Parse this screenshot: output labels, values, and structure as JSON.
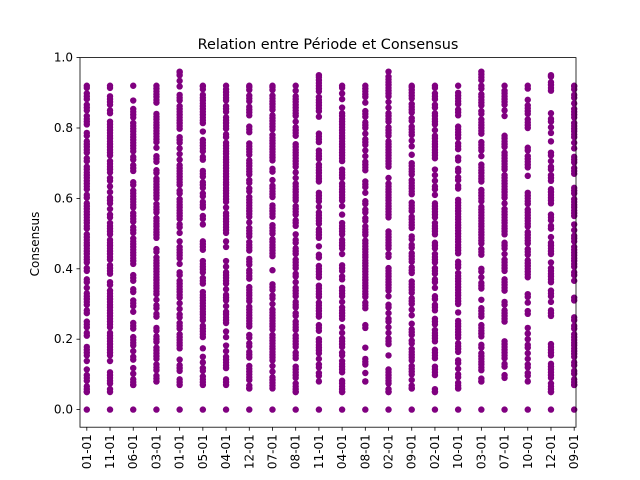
{
  "chart_data": {
    "type": "scatter",
    "title": "Relation entre Période et Consensus",
    "xlabel": "",
    "ylabel": "Consensus",
    "categories": [
      "01-01",
      "11-01",
      "06-01",
      "03-01",
      "01-01",
      "05-01",
      "04-01",
      "12-01",
      "07-01",
      "08-01",
      "11-01",
      "04-01",
      "08-01",
      "02-01",
      "09-01",
      "02-01",
      "10-01",
      "03-01",
      "07-01",
      "10-01",
      "12-01",
      "09-01"
    ],
    "ylim": [
      -0.05,
      1.0
    ],
    "yticks": [
      0.0,
      0.2,
      0.4,
      0.6,
      0.8,
      1.0
    ],
    "ytick_labels": [
      "0.0",
      "0.2",
      "0.4",
      "0.6",
      "0.8",
      "1.0"
    ],
    "grid": false,
    "marker_color": "#800080",
    "series": [
      {
        "points_per_category": [
          {
            "min": 0.05,
            "max": 0.92,
            "zero": true,
            "gaps": []
          },
          {
            "min": 0.05,
            "max": 0.92,
            "zero": true,
            "gaps": []
          },
          {
            "min": 0.07,
            "max": 0.92,
            "zero": true,
            "gaps": []
          },
          {
            "min": 0.08,
            "max": 0.92,
            "zero": true,
            "gaps": [
              [
                0.46,
                0.48
              ]
            ]
          },
          {
            "min": 0.07,
            "max": 0.96,
            "zero": true,
            "gaps": []
          },
          {
            "min": 0.07,
            "max": 0.92,
            "zero": true,
            "gaps": [
              [
                0.48,
                0.5
              ]
            ]
          },
          {
            "min": 0.07,
            "max": 0.92,
            "zero": true,
            "gaps": []
          },
          {
            "min": 0.06,
            "max": 0.92,
            "zero": true,
            "gaps": []
          },
          {
            "min": 0.06,
            "max": 0.92,
            "zero": true,
            "gaps": []
          },
          {
            "min": 0.05,
            "max": 0.92,
            "zero": true,
            "gaps": []
          },
          {
            "min": 0.08,
            "max": 0.95,
            "zero": true,
            "gaps": [
              [
                0.8,
                0.83
              ]
            ]
          },
          {
            "min": 0.05,
            "max": 0.92,
            "zero": true,
            "gaps": []
          },
          {
            "min": 0.08,
            "max": 0.92,
            "zero": true,
            "gaps": [
              [
                0.18,
                0.22
              ],
              [
                0.65,
                0.68
              ]
            ]
          },
          {
            "min": 0.05,
            "max": 0.96,
            "zero": true,
            "gaps": []
          },
          {
            "min": 0.06,
            "max": 0.92,
            "zero": true,
            "gaps": []
          },
          {
            "min": 0.05,
            "max": 0.92,
            "zero": true,
            "gaps": []
          },
          {
            "min": 0.06,
            "max": 0.92,
            "zero": true,
            "gaps": []
          },
          {
            "min": 0.08,
            "max": 0.96,
            "zero": true,
            "gaps": []
          },
          {
            "min": 0.09,
            "max": 0.92,
            "zero": true,
            "gaps": [
              [
                0.2,
                0.25
              ],
              [
                0.78,
                0.82
              ]
            ]
          },
          {
            "min": 0.08,
            "max": 0.92,
            "zero": true,
            "gaps": [
              [
                0.33,
                0.37
              ],
              [
                0.62,
                0.66
              ]
            ]
          },
          {
            "min": 0.05,
            "max": 0.95,
            "zero": true,
            "gaps": [
              [
                0.2,
                0.26
              ],
              [
                0.85,
                0.9
              ]
            ]
          },
          {
            "min": 0.07,
            "max": 0.92,
            "zero": true,
            "gaps": [
              [
                0.27,
                0.31
              ]
            ]
          }
        ]
      }
    ]
  }
}
